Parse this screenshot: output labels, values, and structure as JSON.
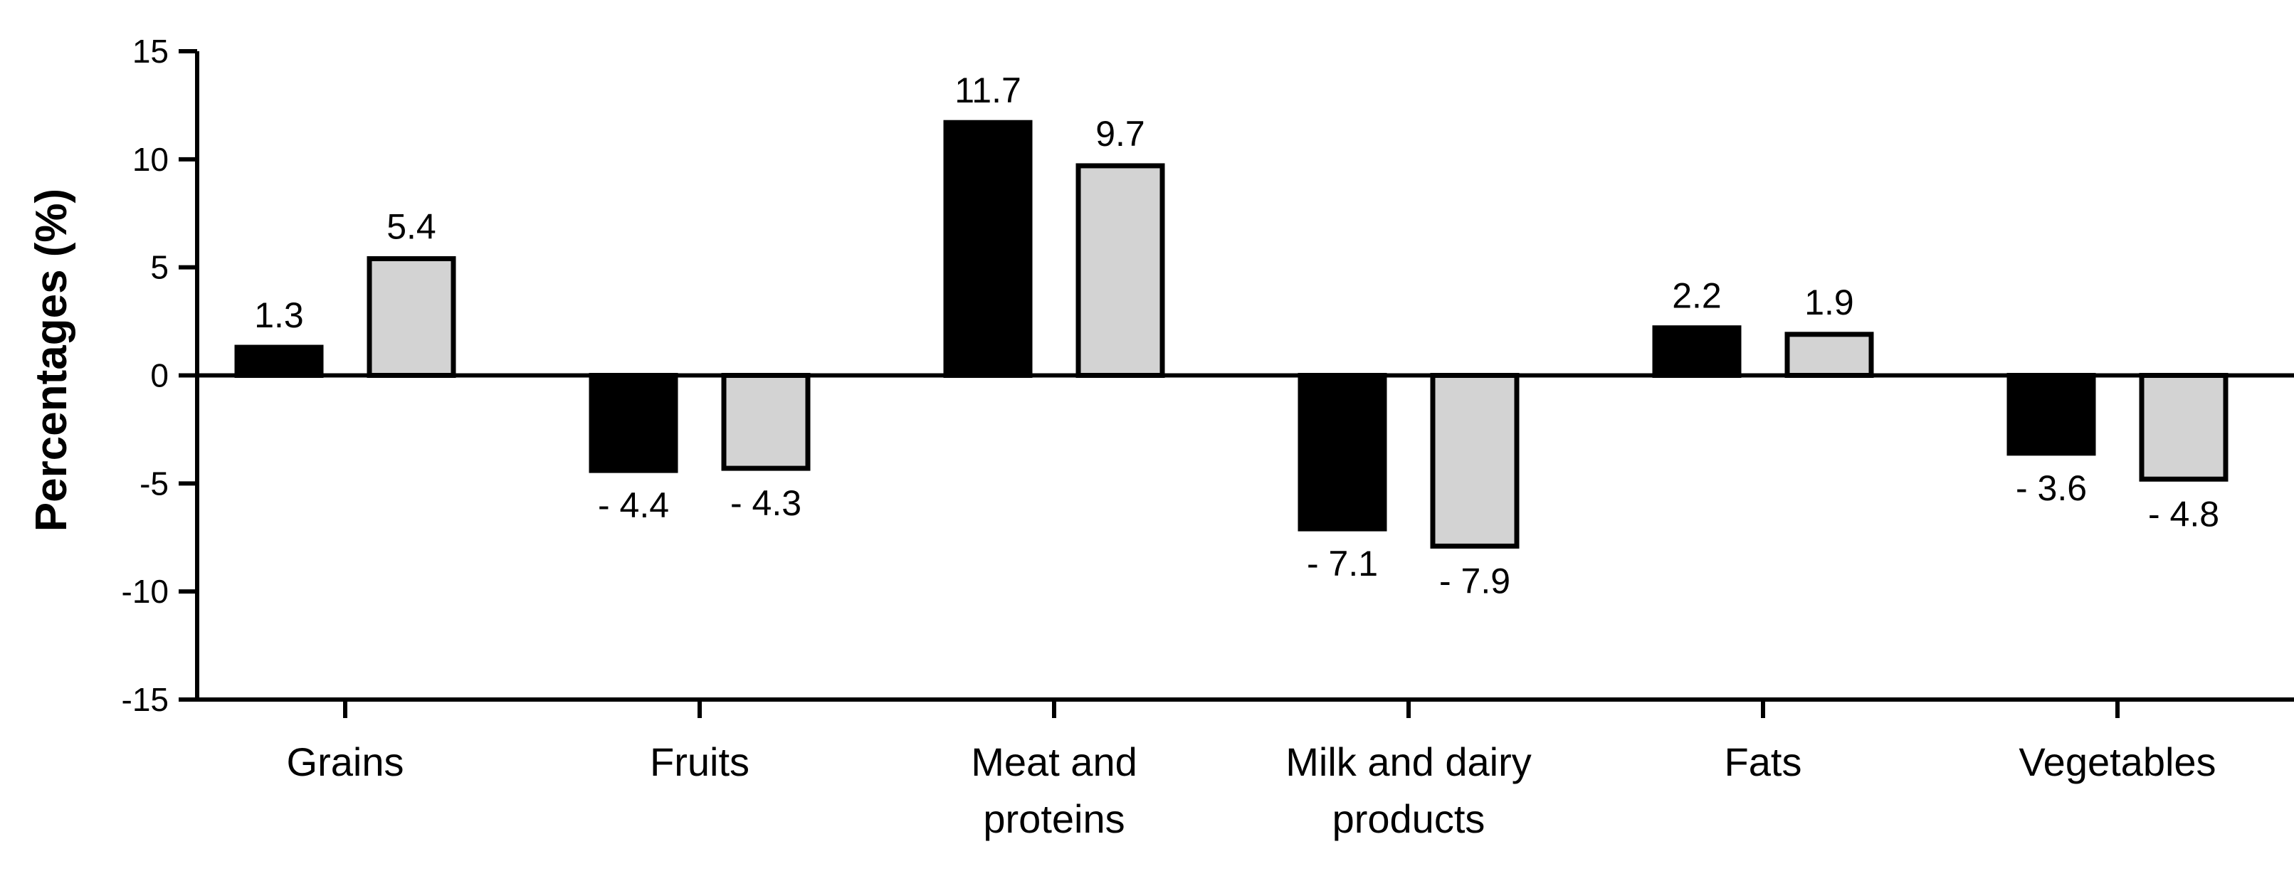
{
  "chart_data": {
    "type": "bar",
    "title": "",
    "xlabel": "",
    "ylabel": "Percentages (%)",
    "ylim": [
      -15,
      15
    ],
    "yticks": [
      15,
      10,
      5,
      0,
      -5,
      -10,
      -15
    ],
    "ytick_labels": [
      "15",
      "10",
      "5",
      "0",
      "-5",
      "-10",
      "-15"
    ],
    "grid": false,
    "legend": "none",
    "categories": [
      [
        "Grains"
      ],
      [
        "Fruits"
      ],
      [
        "Meat and",
        "proteins"
      ],
      [
        "Milk and dairy",
        "products"
      ],
      [
        "Fats"
      ],
      [
        "Vegetables"
      ]
    ],
    "series": [
      {
        "name": "series-1",
        "color": "#000000",
        "values": [
          1.3,
          -4.4,
          11.7,
          -7.1,
          2.2,
          -3.6
        ],
        "labels": [
          "1.3",
          "- 4.4",
          "11.7",
          "- 7.1",
          "2.2",
          "- 3.6"
        ]
      },
      {
        "name": "series-2",
        "color": "#d3d3d3",
        "values": [
          5.4,
          -4.3,
          9.7,
          -7.9,
          1.9,
          -4.8
        ],
        "labels": [
          "5.4",
          "- 4.3",
          "9.7",
          "- 7.9",
          "1.9",
          "- 4.8"
        ]
      }
    ]
  }
}
